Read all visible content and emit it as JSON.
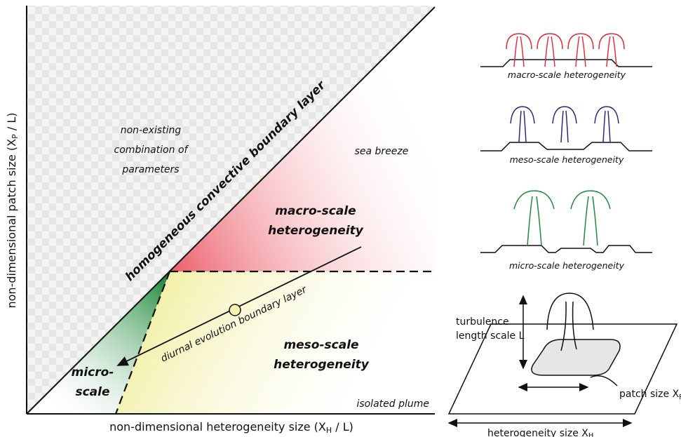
{
  "main": {
    "y_axis": {
      "prefix": "non-dimensional patch size (X",
      "subscript": "P",
      "suffix": " / L)"
    },
    "x_axis": {
      "prefix": "non-dimensional heterogeneity size (X",
      "subscript": "H",
      "suffix": " / L)"
    },
    "non_existing": [
      "non-existing",
      "combination of",
      "parameters"
    ],
    "homogeneous": "homogeneous convective boundary layer",
    "sea_breeze": "sea breeze",
    "macro": [
      "macro-scale",
      "heterogeneity"
    ],
    "meso": [
      "meso-scale",
      "heterogeneity"
    ],
    "micro": [
      "micro-",
      "scale"
    ],
    "diurnal": "diurnal evolution boundary layer",
    "isolated": "isolated plume"
  },
  "side": {
    "macro_caption": "macro-scale heterogeneity",
    "meso_caption": "meso-scale heterogeneity",
    "micro_caption": "micro-scale heterogeneity",
    "turbulence": [
      "turbulence",
      "length scale L"
    ],
    "patch": {
      "prefix": "patch size X",
      "subscript": "P"
    },
    "heterogeneity": {
      "prefix": "heterogeneity size X",
      "subscript": "H"
    }
  }
}
